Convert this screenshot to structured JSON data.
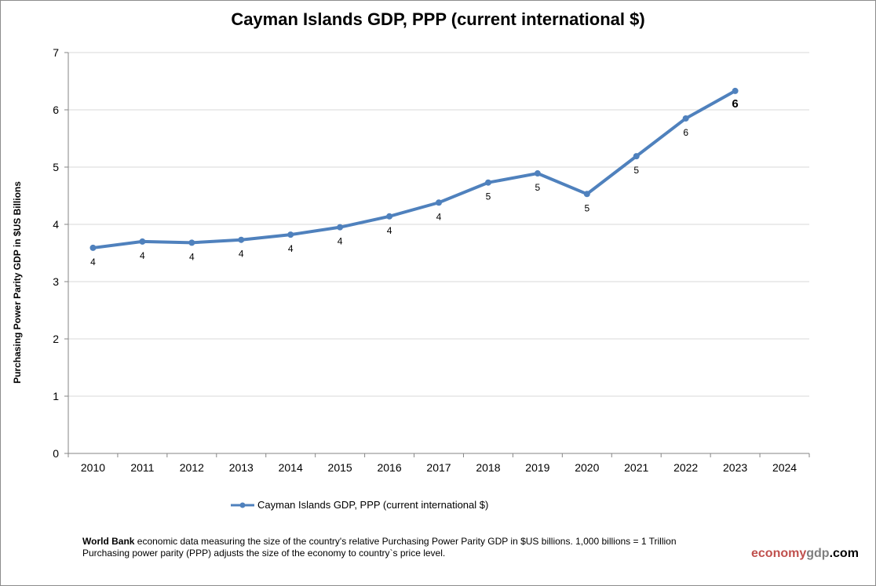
{
  "chart_data": {
    "type": "line",
    "title": "Cayman Islands GDP, PPP (current international $)",
    "ylabel": "Purchasing Power Parity GDP in $US Billions",
    "xlabel": "",
    "categories": [
      "2010",
      "2011",
      "2012",
      "2013",
      "2014",
      "2015",
      "2016",
      "2017",
      "2018",
      "2019",
      "2020",
      "2021",
      "2022",
      "2023",
      "2024"
    ],
    "ylim": [
      0,
      7
    ],
    "yticks": [
      0,
      1,
      2,
      3,
      4,
      5,
      6,
      7
    ],
    "grid": true,
    "legend_position": "bottom",
    "series": [
      {
        "name": "Cayman Islands GDP, PPP (current international $)",
        "color": "#4f81bd",
        "values": [
          3.59,
          3.7,
          3.68,
          3.73,
          3.82,
          3.95,
          4.14,
          4.38,
          4.73,
          4.89,
          4.53,
          5.19,
          5.85,
          6.33,
          null
        ],
        "data_labels": [
          "4",
          "4",
          "4",
          "4",
          "4",
          "4",
          "4",
          "4",
          "5",
          "5",
          "5",
          "5",
          "6",
          "6",
          null
        ]
      }
    ]
  },
  "footer": {
    "source_bold": "World Bank",
    "line1": " economic data  measuring the size of the country's relative  Purchasing Power Parity GDP in $US billions. 1,000 billions = 1 Trillion",
    "line2": "Purchasing power parity (PPP) adjusts the size of the economy to country`s price level."
  },
  "brand": {
    "part1": "economy",
    "part2": "gdp",
    "part3": ".com",
    "color1": "#c0504d",
    "color2": "#7f7f7f",
    "color3": "#000000"
  }
}
